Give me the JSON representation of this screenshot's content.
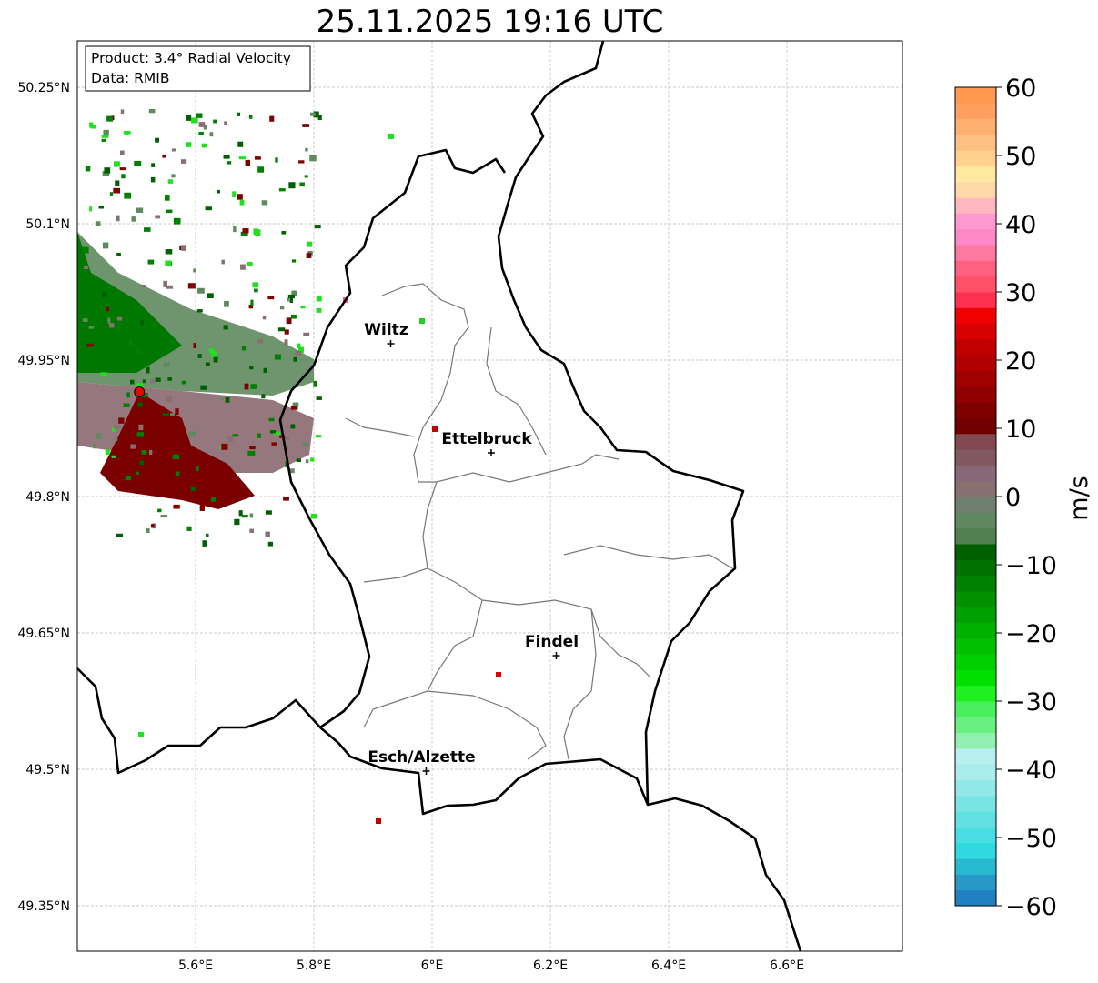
{
  "title": "25.11.2025 19:16 UTC",
  "info_box": {
    "line1": "Product: 3.4° Radial Velocity",
    "line2": "Data: RMIB"
  },
  "map_data": {
    "lon_range": [
      5.4,
      6.8
    ],
    "lat_range": [
      49.3,
      50.3
    ],
    "x_ticks": [
      {
        "v": 5.6,
        "label": "5.6°E"
      },
      {
        "v": 5.8,
        "label": "5.8°E"
      },
      {
        "v": 6.0,
        "label": "6°E"
      },
      {
        "v": 6.2,
        "label": "6.2°E"
      },
      {
        "v": 6.4,
        "label": "6.4°E"
      },
      {
        "v": 6.6,
        "label": "6.6°E"
      }
    ],
    "y_ticks": [
      {
        "v": 50.25,
        "label": "50.25°N"
      },
      {
        "v": 50.1,
        "label": "50.1°N"
      },
      {
        "v": 49.95,
        "label": "49.95°N"
      },
      {
        "v": 49.8,
        "label": "49.8°N"
      },
      {
        "v": 49.65,
        "label": "49.65°N"
      },
      {
        "v": 49.5,
        "label": "49.5°N"
      },
      {
        "v": 49.35,
        "label": "49.35°N"
      }
    ],
    "cities": [
      {
        "name": "Wiltz",
        "lon": 5.93,
        "lat": 49.968
      },
      {
        "name": "Ettelbruck",
        "lon": 6.1,
        "lat": 49.848
      },
      {
        "name": "Findel",
        "lon": 6.21,
        "lat": 49.625
      },
      {
        "name": "Esch/Alzette",
        "lon": 5.99,
        "lat": 49.498
      }
    ],
    "radar_site": {
      "lon": 5.505,
      "lat": 49.915
    }
  },
  "colorbar": {
    "label": "m/s",
    "range": [
      -60,
      60
    ],
    "ticks": [
      {
        "v": 60,
        "label": "60"
      },
      {
        "v": 50,
        "label": "50"
      },
      {
        "v": 40,
        "label": "40"
      },
      {
        "v": 30,
        "label": "30"
      },
      {
        "v": 20,
        "label": "20"
      },
      {
        "v": 10,
        "label": "10"
      },
      {
        "v": 0,
        "label": "0"
      },
      {
        "v": -10,
        "label": "−10"
      },
      {
        "v": -20,
        "label": "−20"
      },
      {
        "v": -30,
        "label": "−30"
      },
      {
        "v": -40,
        "label": "−40"
      },
      {
        "v": -50,
        "label": "−50"
      },
      {
        "v": -60,
        "label": "−60"
      }
    ],
    "colors": [
      "#2080c0",
      "#2898c8",
      "#28b8d0",
      "#30d8e0",
      "#48dde0",
      "#60e0e0",
      "#78e4e4",
      "#90e8e8",
      "#a8ecec",
      "#b8f0f0",
      "#90f0b0",
      "#68f080",
      "#48f060",
      "#20f020",
      "#00e000",
      "#00d000",
      "#00c000",
      "#00b000",
      "#00a000",
      "#009000",
      "#008000",
      "#007000",
      "#006000",
      "#508050",
      "#608860",
      "#708070",
      "#887070",
      "#886878",
      "#805860",
      "#804850",
      "#700000",
      "#800000",
      "#900000",
      "#a00000",
      "#b00000",
      "#c00000",
      "#d80000",
      "#f00000",
      "#ff3050",
      "#ff5068",
      "#ff6080",
      "#ff78a0",
      "#ff88c8",
      "#ff98d0",
      "#ffb8c0",
      "#ffd8a8",
      "#ffe8a0",
      "#ffd090",
      "#ffc080",
      "#ffb070",
      "#ffa060",
      "#ff9850"
    ]
  }
}
